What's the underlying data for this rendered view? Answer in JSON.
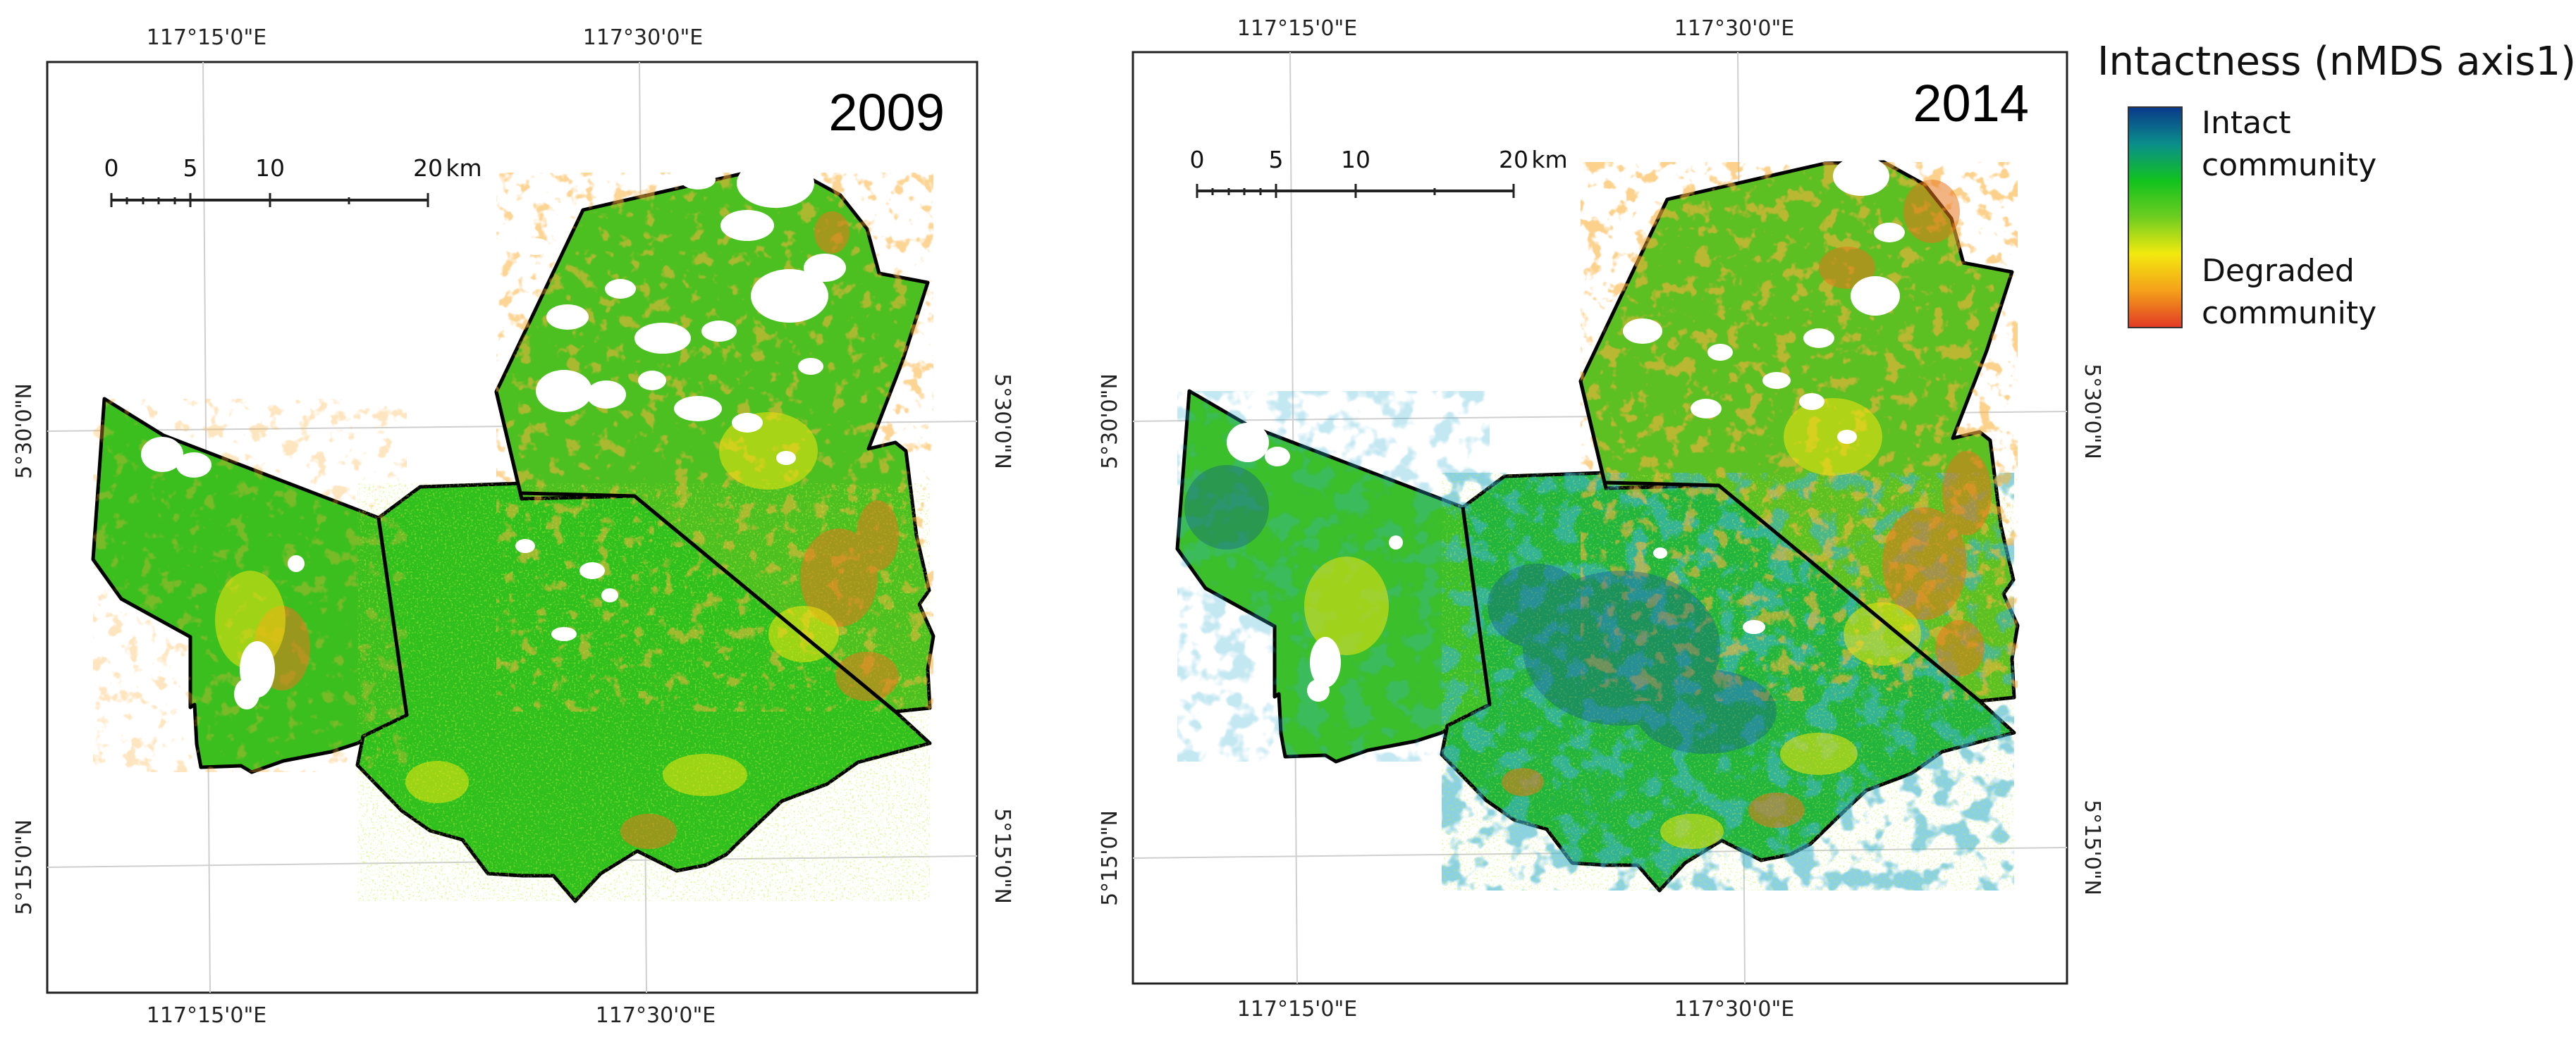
{
  "maps": [
    {
      "year": "2009",
      "top_labels": [
        "117°15'0\"E",
        "117°30'0\"E"
      ],
      "bottom_labels": [
        "117°15'0\"E",
        "117°30'0\"E"
      ],
      "left_labels": [
        "5°30'0\"N",
        "5°15'0\"N"
      ],
      "right_labels": [
        "5°30'0\"N",
        "5°15'0\"N"
      ],
      "scale_ticks": [
        "0",
        "5",
        "10",
        "20"
      ],
      "scale_unit": "km"
    },
    {
      "year": "2014",
      "top_labels": [
        "117°15'0\"E",
        "117°30'0\"E"
      ],
      "bottom_labels": [
        "117°15'0\"E",
        "117°30'0\"E"
      ],
      "left_labels": [
        "5°30'0\"N",
        "5°15'0\"N"
      ],
      "right_labels": [
        "5°30'0\"N",
        "5°15'0\"N"
      ],
      "scale_ticks": [
        "0",
        "5",
        "10",
        "20"
      ],
      "scale_unit": "km"
    }
  ],
  "legend": {
    "title": "Intactness (nMDS axis1)",
    "top_label": [
      "Intact",
      "community"
    ],
    "bottom_label": [
      "Degraded",
      "community"
    ],
    "colors": [
      "#0a3a8a",
      "#0a8f8a",
      "#12c21e",
      "#6fcd20",
      "#f2e90f",
      "#f5a11a",
      "#e23b25"
    ]
  }
}
